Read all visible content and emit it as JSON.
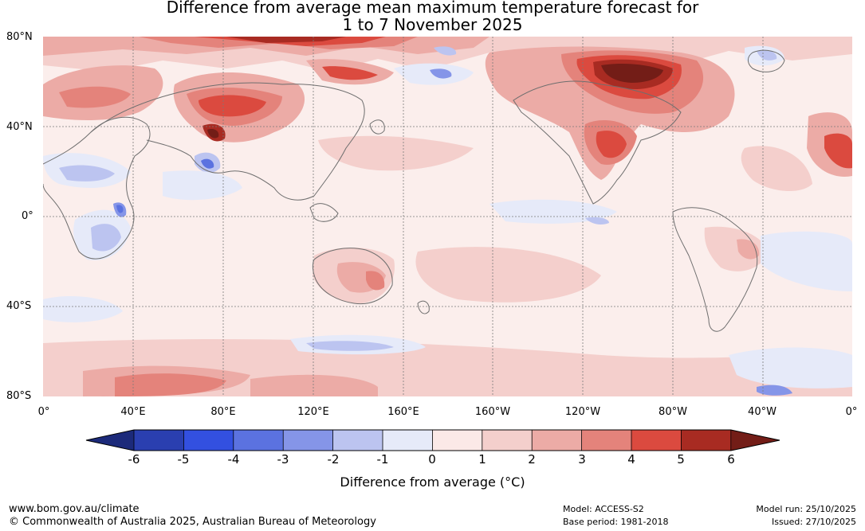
{
  "title": {
    "line1": "Difference from average mean maximum temperature forecast for",
    "line2": "1 to 7 November 2025"
  },
  "latitude_labels": [
    "80°N",
    "40°N",
    "0°",
    "40°S",
    "80°S"
  ],
  "longitude_labels": [
    "0°",
    "40°E",
    "80°E",
    "120°E",
    "160°E",
    "160°W",
    "120°W",
    "80°W",
    "40°W",
    "0°"
  ],
  "colorbar": {
    "ticks": [
      "-6",
      "-5",
      "-4",
      "-3",
      "-2",
      "-1",
      "0",
      "1",
      "2",
      "3",
      "4",
      "5",
      "6"
    ],
    "colors": {
      "below_-6": "#1c2a7a",
      "-6_-5": "#2a3fb0",
      "-5_-4": "#3350e0",
      "-4_-3": "#5b72e0",
      "-3_-2": "#8595e8",
      "-2_-1": "#bcc4f0",
      "-1_0": "#e6eaf9",
      "0_1": "#fbe9e7",
      "1_2": "#f4cfcc",
      "2_3": "#ecaba6",
      "3_4": "#e4837b",
      "4_5": "#db4a3f",
      "5_6": "#a82b22",
      "above_6": "#731d17"
    },
    "label": "Difference from average (°C)"
  },
  "footer": {
    "url": "www.bom.gov.au/climate",
    "copyright": "© Commonwealth of Australia 2025, Australian Bureau of Meteorology",
    "model": "Model: ACCESS-S2",
    "base_period": "Base period: 1981-2018",
    "model_run": "Model run: 25/10/2025",
    "issued": "Issued: 27/10/2025"
  }
}
